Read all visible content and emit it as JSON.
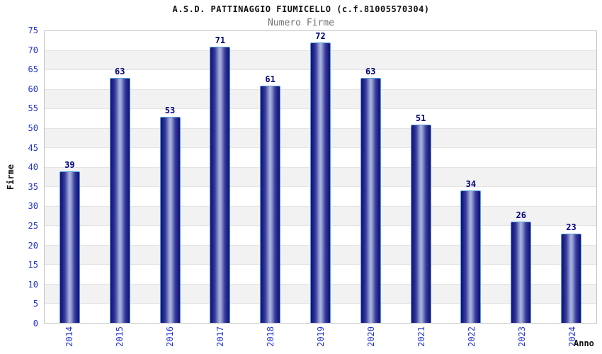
{
  "chart_data": {
    "type": "bar",
    "title": "A.S.D. PATTINAGGIO FIUMICELLO (c.f.81005570304)",
    "subtitle": "Numero Firme",
    "xlabel": "Anno",
    "ylabel": "Firme",
    "categories": [
      "2014",
      "2015",
      "2016",
      "2017",
      "2018",
      "2019",
      "2020",
      "2021",
      "2022",
      "2023",
      "2024"
    ],
    "values": [
      39,
      63,
      53,
      71,
      61,
      72,
      63,
      51,
      34,
      26,
      23
    ],
    "ylim": [
      0,
      75
    ],
    "yticks": [
      0,
      5,
      10,
      15,
      20,
      25,
      30,
      35,
      40,
      45,
      50,
      55,
      60,
      65,
      70,
      75
    ],
    "grid": "horizontal alternating bands, white and light gray, every 5 units",
    "legend": "none",
    "colors": {
      "bar_gradient_edge": "#131378",
      "bar_gradient_highlight": "#adb6e0",
      "bar_border": "#55a2e0",
      "value_label": "#00007d",
      "tick_label": "#2233cc",
      "band_alt": "#f2f2f2",
      "plot_border": "#c4c4c4",
      "title_color": "#111111",
      "subtitle_color": "#707070"
    }
  }
}
